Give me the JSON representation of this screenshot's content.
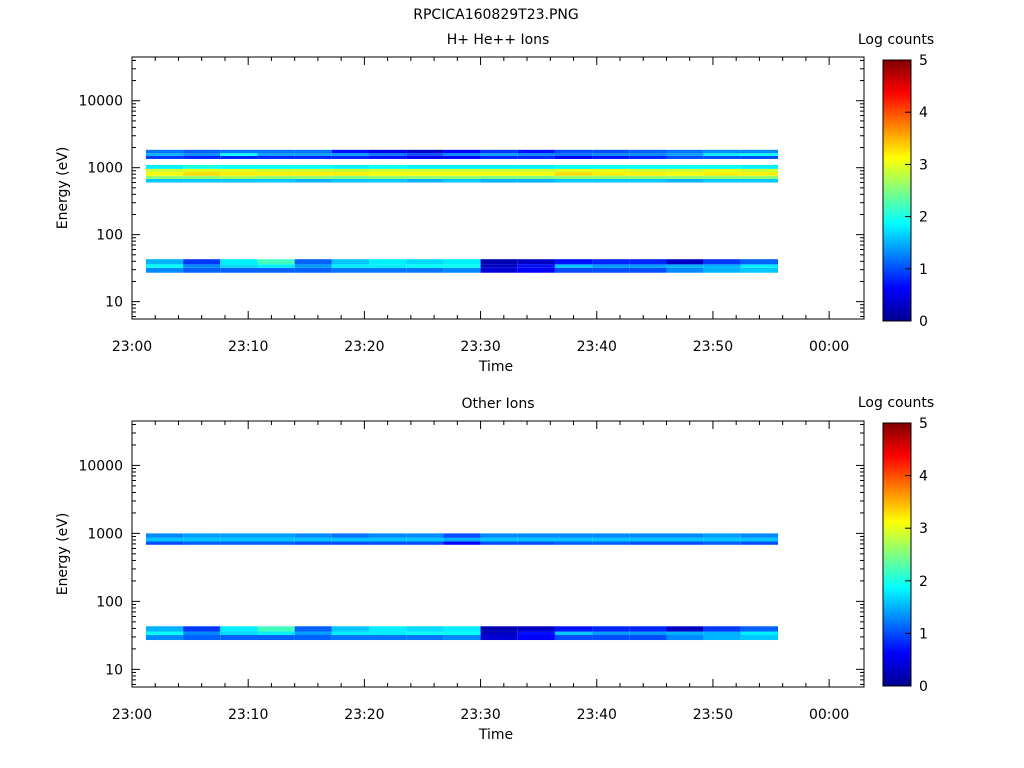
{
  "page_title": "RPCICA160829T23.PNG",
  "colorbar": {
    "label": "Log counts",
    "ticks": [
      "0",
      "1",
      "2",
      "3",
      "4",
      "5"
    ],
    "stops": [
      "#00008f",
      "#0000ff",
      "#0080ff",
      "#00ffff",
      "#80ff80",
      "#ffff00",
      "#ff8000",
      "#ff0000",
      "#800000"
    ]
  },
  "chart_data": [
    {
      "type": "heatmap",
      "title": "H+ He++ Ions",
      "xlabel": "Time",
      "ylabel": "Energy (eV)",
      "x_ticks": [
        "23:00",
        "23:10",
        "23:20",
        "23:30",
        "23:40",
        "23:50",
        "00:00"
      ],
      "x_range_min": [
        0,
        63
      ],
      "y_scale": "log",
      "y_ticks": [
        "10",
        "100",
        "1000",
        "10000"
      ],
      "y_range": [
        5.5,
        45000
      ],
      "z_label": "Log counts",
      "z_range": [
        0,
        5
      ],
      "time_bins_min": [
        1.2,
        4.4,
        7.6,
        10.8,
        14.0,
        17.2,
        20.4,
        23.6,
        26.8,
        30.0,
        33.2,
        36.4,
        39.6,
        42.8,
        46.0,
        49.2,
        52.4
      ],
      "bands": [
        {
          "e_min": 27,
          "e_max": 32,
          "values": [
            1.3,
            1.1,
            1.1,
            1.1,
            1.1,
            1.2,
            1.2,
            1.2,
            1.3,
            0.4,
            0.6,
            1.0,
            1.0,
            1.0,
            1.3,
            1.5,
            1.6
          ]
        },
        {
          "e_min": 32,
          "e_max": 36,
          "values": [
            1.9,
            1.3,
            1.7,
            1.8,
            1.4,
            1.8,
            1.8,
            1.9,
            1.9,
            0.3,
            0.7,
            1.6,
            1.4,
            1.4,
            1.5,
            1.5,
            1.8
          ]
        },
        {
          "e_min": 36,
          "e_max": 43,
          "values": [
            1.5,
            0.9,
            1.8,
            2.2,
            1.1,
            1.6,
            1.8,
            1.7,
            1.8,
            0.2,
            0.3,
            0.7,
            0.8,
            0.8,
            0.3,
            0.9,
            1.1
          ]
        },
        {
          "e_min": 600,
          "e_max": 680,
          "values": [
            1.6,
            1.6,
            1.6,
            1.6,
            1.5,
            1.6,
            1.6,
            1.5,
            1.6,
            1.5,
            1.5,
            1.6,
            1.6,
            1.6,
            1.5,
            1.6,
            1.6
          ]
        },
        {
          "e_min": 680,
          "e_max": 760,
          "values": [
            2.6,
            2.6,
            2.7,
            2.6,
            2.6,
            2.5,
            2.6,
            2.6,
            2.6,
            2.5,
            2.5,
            2.6,
            2.6,
            2.6,
            2.6,
            2.6,
            2.6
          ]
        },
        {
          "e_min": 760,
          "e_max": 860,
          "values": [
            3.1,
            3.3,
            3.2,
            3.2,
            3.2,
            3.2,
            3.1,
            3.1,
            3.1,
            3.1,
            3.1,
            3.3,
            3.2,
            3.2,
            3.1,
            3.2,
            3.2
          ]
        },
        {
          "e_min": 860,
          "e_max": 960,
          "values": [
            2.9,
            3.0,
            3.0,
            2.9,
            2.9,
            2.9,
            2.9,
            2.9,
            2.9,
            2.9,
            2.9,
            3.0,
            3.0,
            2.9,
            2.9,
            3.0,
            2.9
          ]
        },
        {
          "e_min": 960,
          "e_max": 1100,
          "values": [
            1.8,
            2.0,
            1.9,
            1.9,
            1.9,
            1.8,
            1.9,
            1.8,
            1.8,
            1.8,
            1.8,
            1.9,
            1.9,
            1.9,
            1.9,
            1.9,
            1.8
          ]
        },
        {
          "e_min": 1350,
          "e_max": 1500,
          "values": [
            0.9,
            0.8,
            0.8,
            0.8,
            0.8,
            0.8,
            0.7,
            0.6,
            0.6,
            0.8,
            0.8,
            0.6,
            0.7,
            0.8,
            1.0,
            1.0,
            1.0
          ]
        },
        {
          "e_min": 1500,
          "e_max": 1650,
          "values": [
            1.5,
            1.3,
            1.9,
            1.4,
            1.4,
            1.4,
            1.2,
            1.0,
            1.3,
            1.4,
            1.3,
            1.2,
            1.3,
            1.3,
            1.4,
            1.8,
            1.9
          ]
        },
        {
          "e_min": 1650,
          "e_max": 1850,
          "values": [
            1.2,
            1.1,
            1.2,
            1.2,
            1.2,
            0.7,
            0.5,
            0.3,
            0.6,
            0.9,
            0.7,
            1.0,
            1.0,
            1.1,
            1.2,
            1.3,
            1.3
          ]
        }
      ]
    },
    {
      "type": "heatmap",
      "title": "Other Ions",
      "xlabel": "Time",
      "ylabel": "Energy (eV)",
      "x_ticks": [
        "23:00",
        "23:10",
        "23:20",
        "23:30",
        "23:40",
        "23:50",
        "00:00"
      ],
      "x_range_min": [
        0,
        63
      ],
      "y_scale": "log",
      "y_ticks": [
        "10",
        "100",
        "1000",
        "10000"
      ],
      "y_range": [
        5.5,
        45000
      ],
      "z_label": "Log counts",
      "z_range": [
        0,
        5
      ],
      "time_bins_min": [
        1.2,
        4.4,
        7.6,
        10.8,
        14.0,
        17.2,
        20.4,
        23.6,
        26.8,
        30.0,
        33.2,
        36.4,
        39.6,
        42.8,
        46.0,
        49.2,
        52.4
      ],
      "bands": [
        {
          "e_min": 27,
          "e_max": 32,
          "values": [
            1.3,
            1.1,
            1.1,
            1.1,
            1.1,
            1.2,
            1.2,
            1.2,
            1.3,
            0.4,
            0.6,
            1.0,
            1.0,
            1.0,
            1.3,
            1.5,
            1.6
          ]
        },
        {
          "e_min": 32,
          "e_max": 36,
          "values": [
            1.9,
            1.3,
            1.7,
            1.8,
            1.4,
            1.8,
            1.8,
            1.9,
            1.9,
            0.3,
            0.7,
            1.6,
            1.4,
            1.4,
            1.5,
            1.5,
            1.8
          ]
        },
        {
          "e_min": 36,
          "e_max": 43,
          "values": [
            1.5,
            0.9,
            1.8,
            2.2,
            1.1,
            1.6,
            1.8,
            1.7,
            1.8,
            0.2,
            0.3,
            0.7,
            0.8,
            0.8,
            0.3,
            0.9,
            1.1
          ]
        },
        {
          "e_min": 680,
          "e_max": 760,
          "values": [
            1.0,
            1.1,
            1.1,
            1.1,
            1.0,
            1.0,
            1.0,
            1.0,
            0.6,
            1.0,
            1.0,
            1.1,
            1.1,
            1.0,
            1.0,
            1.1,
            1.0
          ]
        },
        {
          "e_min": 760,
          "e_max": 860,
          "values": [
            1.6,
            1.6,
            1.6,
            1.6,
            1.6,
            1.6,
            1.6,
            1.6,
            1.5,
            1.6,
            1.6,
            1.6,
            1.6,
            1.6,
            1.6,
            1.6,
            1.6
          ]
        },
        {
          "e_min": 860,
          "e_max": 1000,
          "values": [
            1.3,
            1.4,
            1.4,
            1.4,
            1.3,
            1.2,
            1.3,
            1.3,
            1.0,
            1.3,
            1.3,
            1.3,
            1.3,
            1.3,
            1.3,
            1.4,
            1.3
          ]
        }
      ]
    }
  ]
}
